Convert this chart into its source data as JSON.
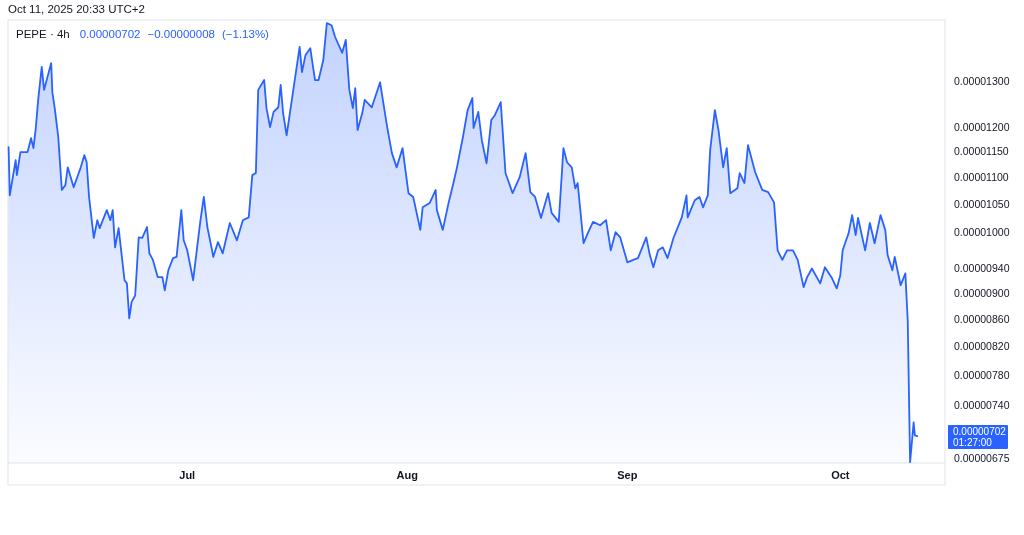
{
  "chart_data": {
    "type": "area",
    "title": "PEPE · 4h",
    "log": "y",
    "annotations": [
      "Oct 11, 2025 20:33 UTC+2",
      "0.00000702",
      "−0.00000008",
      "(−1.13%)",
      "0.00000702\n01:27:00"
    ],
    "xlim": [
      "2025-06-05T18:00",
      "2025-10-15T18:00"
    ],
    "xticks": [
      {
        "value": "2025-07-01",
        "label": "Jul"
      },
      {
        "value": "2025-08-01",
        "label": "Aug"
      },
      {
        "value": "2025-09-01",
        "label": "Sep"
      },
      {
        "value": "2025-10-01",
        "label": "Oct"
      }
    ],
    "ylim": [
      6.7e-06,
      1.445e-05
    ],
    "yticks": [
      {
        "value": 1.3e-05,
        "label": "0.00001300"
      },
      {
        "value": 1.2e-05,
        "label": "0.00001200"
      },
      {
        "value": 1.15e-05,
        "label": "0.00001150"
      },
      {
        "value": 1.1e-05,
        "label": "0.00001100"
      },
      {
        "value": 1.05e-05,
        "label": "0.00001050"
      },
      {
        "value": 1e-05,
        "label": "0.00001000"
      },
      {
        "value": 9.4e-06,
        "label": "0.00000940"
      },
      {
        "value": 9e-06,
        "label": "0.00000900"
      },
      {
        "value": 8.6e-06,
        "label": "0.00000860"
      },
      {
        "value": 8.2e-06,
        "label": "0.00000820"
      },
      {
        "value": 7.8e-06,
        "label": "0.00000780"
      },
      {
        "value": 7.4e-06,
        "label": "0.00000740"
      },
      {
        "value": 6.75e-06,
        "label": "0.00000675"
      }
    ],
    "x": [
      "2025-06-05T20:00",
      "2025-06-06T00:00",
      "2025-06-06T20:00",
      "2025-06-07T00:00",
      "2025-06-07T12:00",
      "2025-06-08T12:00",
      "2025-06-09T00:00",
      "2025-06-09T08:00",
      "2025-06-09T16:00",
      "2025-06-10T00:00",
      "2025-06-10T12:00",
      "2025-06-10T20:00",
      "2025-06-11T20:00",
      "2025-06-12T00:00",
      "2025-06-12T08:00",
      "2025-06-12T20:00",
      "2025-06-13T08:00",
      "2025-06-13T20:00",
      "2025-06-14T04:00",
      "2025-06-15T00:00",
      "2025-06-16T00:00",
      "2025-06-16T12:00",
      "2025-06-16T20:00",
      "2025-06-17T04:00",
      "2025-06-17T20:00",
      "2025-06-18T08:00",
      "2025-06-18T16:00",
      "2025-06-19T16:00",
      "2025-06-20T04:00",
      "2025-06-20T12:00",
      "2025-06-20T20:00",
      "2025-06-21T08:00",
      "2025-06-22T04:00",
      "2025-06-22T12:00",
      "2025-06-22T20:00",
      "2025-06-23T04:00",
      "2025-06-23T16:00",
      "2025-06-24T04:00",
      "2025-06-24T16:00",
      "2025-06-25T08:00",
      "2025-06-25T16:00",
      "2025-06-26T04:00",
      "2025-06-26T20:00",
      "2025-06-27T12:00",
      "2025-06-27T20:00",
      "2025-06-28T08:00",
      "2025-06-29T00:00",
      "2025-06-29T12:00",
      "2025-06-30T04:00",
      "2025-06-30T12:00",
      "2025-07-01T00:00",
      "2025-07-01T20:00",
      "2025-07-02T20:00",
      "2025-07-03T08:00",
      "2025-07-03T20:00",
      "2025-07-04T12:00",
      "2025-07-04T16:00",
      "2025-07-05T08:00",
      "2025-07-06T00:00",
      "2025-07-07T00:00",
      "2025-07-08T00:00",
      "2025-07-08T20:00",
      "2025-07-09T16:00",
      "2025-07-10T04:00",
      "2025-07-10T16:00",
      "2025-07-11T00:00",
      "2025-07-11T20:00",
      "2025-07-12T04:00",
      "2025-07-12T16:00",
      "2025-07-13T04:00",
      "2025-07-13T20:00",
      "2025-07-14T04:00",
      "2025-07-14T12:00",
      "2025-07-15T00:00",
      "2025-07-16T00:00",
      "2025-07-16T20:00",
      "2025-07-17T04:00",
      "2025-07-17T16:00",
      "2025-07-18T08:00",
      "2025-07-19T00:00",
      "2025-07-19T12:00",
      "2025-07-20T04:00",
      "2025-07-20T16:00",
      "2025-07-21T08:00",
      "2025-07-21T20:00",
      "2025-07-22T20:00",
      "2025-07-23T08:00",
      "2025-07-23T20:00",
      "2025-07-24T08:00",
      "2025-07-24T16:00",
      "2025-07-25T00:00",
      "2025-07-25T16:00",
      "2025-07-26T00:00",
      "2025-07-27T00:00",
      "2025-07-28T04:00",
      "2025-07-29T04:00",
      "2025-07-29T20:00",
      "2025-07-30T12:00",
      "2025-07-31T08:00",
      "2025-08-01T04:00",
      "2025-08-01T20:00",
      "2025-08-02T20:00",
      "2025-08-03T04:00",
      "2025-08-04T04:00",
      "2025-08-05T00:00",
      "2025-08-05T04:00",
      "2025-08-06T00:00",
      "2025-08-06T20:00",
      "2025-08-07T12:00",
      "2025-08-08T00:00",
      "2025-08-08T20:00",
      "2025-08-09T12:00",
      "2025-08-10T04:00",
      "2025-08-10T08:00",
      "2025-08-11T00:00",
      "2025-08-11T12:00",
      "2025-08-12T04:00",
      "2025-08-12T20:00",
      "2025-08-13T08:00",
      "2025-08-14T04:00",
      "2025-08-14T20:00",
      "2025-08-15T20:00",
      "2025-08-16T20:00",
      "2025-08-17T16:00",
      "2025-08-18T08:00",
      "2025-08-19T00:00",
      "2025-08-19T20:00",
      "2025-08-20T20:00",
      "2025-08-21T08:00",
      "2025-08-22T08:00",
      "2025-08-23T00:00",
      "2025-08-23T12:00",
      "2025-08-24T04:00",
      "2025-08-24T16:00",
      "2025-08-25T00:00",
      "2025-08-25T20:00",
      "2025-08-26T12:00",
      "2025-08-27T04:00",
      "2025-08-28T04:00",
      "2025-08-29T00:00",
      "2025-08-29T16:00",
      "2025-08-30T08:00",
      "2025-08-31T00:00",
      "2025-09-01T00:00",
      "2025-09-01T20:00",
      "2025-09-02T12:00",
      "2025-09-03T16:00",
      "2025-09-04T04:00",
      "2025-09-04T16:00",
      "2025-09-05T08:00",
      "2025-09-06T00:00",
      "2025-09-06T16:00",
      "2025-09-07T12:00",
      "2025-09-08T16:00",
      "2025-09-09T08:00",
      "2025-09-09T12:00",
      "2025-09-10T12:00",
      "2025-09-11T04:00",
      "2025-09-11T16:00",
      "2025-09-12T08:00",
      "2025-09-12T16:00",
      "2025-09-13T08:00",
      "2025-09-13T20:00",
      "2025-09-14T12:00",
      "2025-09-15T00:00",
      "2025-09-15T12:00",
      "2025-09-16T12:00",
      "2025-09-16T20:00",
      "2025-09-17T12:00",
      "2025-09-18T00:00",
      "2025-09-19T00:00",
      "2025-09-20T00:00",
      "2025-09-20T20:00",
      "2025-09-21T16:00",
      "2025-09-22T04:00",
      "2025-09-22T20:00",
      "2025-09-23T12:00",
      "2025-09-24T08:00",
      "2025-09-25T00:00",
      "2025-09-25T20:00",
      "2025-09-26T08:00",
      "2025-09-27T00:00",
      "2025-09-28T04:00",
      "2025-09-28T20:00",
      "2025-09-29T20:00",
      "2025-09-30T12:00",
      "2025-10-01T00:00",
      "2025-10-01T08:00",
      "2025-10-02T04:00",
      "2025-10-02T16:00",
      "2025-10-03T04:00",
      "2025-10-03T12:00",
      "2025-10-04T12:00",
      "2025-10-05T04:00",
      "2025-10-05T20:00",
      "2025-10-06T16:00",
      "2025-10-07T08:00",
      "2025-10-07T16:00",
      "2025-10-08T08:00",
      "2025-10-08T16:00",
      "2025-10-09T12:00",
      "2025-10-10T04:00",
      "2025-10-10T12:00",
      "2025-10-10T20:00",
      "2025-10-11T08:00",
      "2025-10-11T12:00",
      "2025-10-11T20:00"
    ],
    "series": [
      {
        "color": "#2962ff",
        "values": [
          1.159e-05,
          1.066e-05,
          1.133e-05,
          1.104e-05,
          1.149e-05,
          1.149e-05,
          1.177e-05,
          1.157e-05,
          1.198e-05,
          1.258e-05,
          1.332e-05,
          1.28e-05,
          1.341e-05,
          1.275e-05,
          1.24e-05,
          1.179e-05,
          1.076e-05,
          1.085e-05,
          1.119e-05,
          1.081e-05,
          1.119e-05,
          1.143e-05,
          1.129e-05,
          1.063e-05,
          9.9e-06,
          1.021e-05,
          1.007e-05,
          1.039e-05,
          1.021e-05,
          1.039e-05,
          9.74e-06,
          1.007e-05,
          9.2e-06,
          9.15e-06,
          8.61e-06,
          8.86e-06,
          8.96e-06,
          9.91e-06,
          9.9e-06,
          1.009e-05,
          9.64e-06,
          9.53e-06,
          9.25e-06,
          9.25e-06,
          9.04e-06,
          9.36e-06,
          9.56e-06,
          9.58e-06,
          1.039e-05,
          9.86e-06,
          9.69e-06,
          9.2e-06,
          1.018e-05,
          1.063e-05,
          1.009e-05,
          9.69e-06,
          9.58e-06,
          9.83e-06,
          9.64e-06,
          1.016e-05,
          9.86e-06,
          1.021e-05,
          1.026e-05,
          1.104e-05,
          1.108e-05,
          1.28e-05,
          1.302e-05,
          1.24e-05,
          1.2e-05,
          1.232e-05,
          1.242e-05,
          1.291e-05,
          1.23e-05,
          1.183e-05,
          1.286e-05,
          1.379e-05,
          1.32e-05,
          1.36e-05,
          1.376e-05,
          1.302e-05,
          1.302e-05,
          1.348e-05,
          1.437e-05,
          1.432e-05,
          1.403e-05,
          1.365e-05,
          1.396e-05,
          1.28e-05,
          1.24e-05,
          1.284e-05,
          1.194e-05,
          1.23e-05,
          1.258e-05,
          1.242e-05,
          1.297e-05,
          1.2e-05,
          1.147e-05,
          1.119e-05,
          1.157e-05,
          1.07e-05,
          1.063e-05,
          1.004e-05,
          1.044e-05,
          1.052e-05,
          1.076e-05,
          1.039e-05,
          1.004e-05,
          1.053e-05,
          1.089e-05,
          1.119e-05,
          1.179e-05,
          1.236e-05,
          1.262e-05,
          1.198e-05,
          1.232e-05,
          1.173e-05,
          1.127e-05,
          1.215e-05,
          1.225e-05,
          1.253e-05,
          1.108e-05,
          1.07e-05,
          1.1e-05,
          1.147e-05,
          1.072e-05,
          1.063e-05,
          1.025e-05,
          1.07e-05,
          1.034e-05,
          1.018e-05,
          1.157e-05,
          1.129e-05,
          1.119e-05,
          1.079e-05,
          1.089e-05,
          9.81e-06,
          1e-05,
          1.018e-05,
          1.012e-05,
          1.021e-05,
          9.69e-06,
          1e-05,
          9.91e-06,
          9.49e-06,
          9.53e-06,
          9.56e-06,
          9.91e-06,
          9.61e-06,
          9.41e-06,
          9.69e-06,
          9.74e-06,
          9.56e-06,
          9.9e-06,
          1.026e-05,
          1.066e-05,
          1.026e-05,
          1.057e-05,
          1.063e-05,
          1.044e-05,
          1.066e-05,
          1.153e-05,
          1.236e-05,
          1.194e-05,
          1.119e-05,
          1.157e-05,
          1.07e-05,
          1.079e-05,
          1.108e-05,
          1.089e-05,
          1.163e-05,
          1.11e-05,
          1.076e-05,
          1.072e-05,
          1.053e-05,
          9.69e-06,
          9.53e-06,
          9.69e-06,
          9.69e-06,
          9.53e-06,
          9.09e-06,
          9.25e-06,
          9.39e-06,
          9.15e-06,
          9.41e-06,
          9.23e-06,
          9.07e-06,
          9.28e-06,
          9.69e-06,
          9.98e-06,
          1.03e-05,
          9.95e-06,
          1.025e-05,
          9.69e-06,
          1.016e-05,
          9.81e-06,
          1.03e-05,
          1.004e-05,
          9.61e-06,
          9.36e-06,
          9.58e-06,
          9.12e-06,
          9.31e-06,
          8.58e-06,
          6.71e-06,
          7.19e-06,
          7.03e-06,
          7.02e-06
        ]
      }
    ]
  }
}
